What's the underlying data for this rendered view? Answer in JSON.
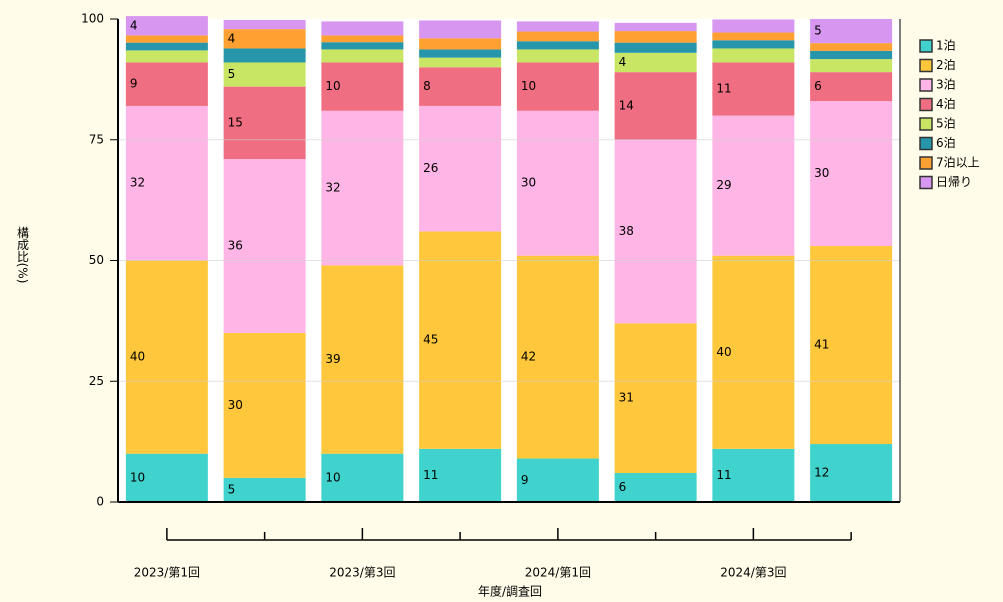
{
  "chart_data": {
    "type": "stacked_bar",
    "categories": [
      "2023/第1回",
      null,
      "2023/第3回",
      null,
      "2024/第1回",
      null,
      "2024/第3回",
      null
    ],
    "xlabel": "年度/調査回",
    "ylabel": "構成比(%)",
    "ylim": [
      0,
      100
    ],
    "yticks": [
      0,
      25,
      50,
      75,
      100
    ],
    "grid": true,
    "legend": "right",
    "series": [
      {
        "name": "1泊",
        "color": "#40d2cc",
        "values": [
          10,
          5,
          10,
          11,
          9,
          6,
          11,
          12
        ],
        "value_labels": [
          "10",
          "5",
          "10",
          "11",
          "9",
          "6",
          "11",
          "12"
        ]
      },
      {
        "name": "2泊",
        "color": "#ffc83c",
        "values": [
          40,
          30,
          39,
          45,
          42,
          31,
          40,
          41
        ],
        "value_labels": [
          "40",
          "30",
          "39",
          "45",
          "42",
          "31",
          "40",
          "41"
        ]
      },
      {
        "name": "3泊",
        "color": "#ffb6e6",
        "values": [
          32,
          36,
          32,
          26,
          30,
          38,
          29,
          30
        ],
        "value_labels": [
          "32",
          "36",
          "32",
          "26",
          "30",
          "38",
          "29",
          "30"
        ]
      },
      {
        "name": "4泊",
        "color": "#f06e82",
        "values": [
          9,
          15,
          10,
          8,
          10,
          14,
          11,
          6
        ],
        "value_labels": [
          "9",
          "15",
          "10",
          "8",
          "10",
          "14",
          "11",
          "6"
        ]
      },
      {
        "name": "5泊",
        "color": "#c8e664",
        "values": [
          2.5,
          5,
          2.7,
          2,
          2.7,
          4,
          2.9,
          2.7
        ],
        "value_labels": [
          null,
          "5",
          null,
          null,
          null,
          "4",
          null,
          null
        ]
      },
      {
        "name": "6泊",
        "color": "#2896aa",
        "values": [
          1.6,
          2.9,
          1.5,
          1.7,
          1.7,
          2.1,
          1.7,
          1.7
        ],
        "value_labels": [
          null,
          null,
          null,
          null,
          null,
          null,
          null,
          null
        ]
      },
      {
        "name": "7泊以上",
        "color": "#ffa032",
        "values": [
          1.5,
          4,
          1.4,
          2.3,
          2,
          2.4,
          1.6,
          1.6
        ],
        "value_labels": [
          null,
          "4",
          null,
          null,
          null,
          null,
          null,
          null
        ]
      },
      {
        "name": "日帰り",
        "color": "#d796f0",
        "values": [
          4,
          1.9,
          2.9,
          3.7,
          2.1,
          1.7,
          2.7,
          5
        ],
        "value_labels": [
          "4",
          null,
          null,
          null,
          null,
          null,
          null,
          "5"
        ]
      }
    ]
  }
}
